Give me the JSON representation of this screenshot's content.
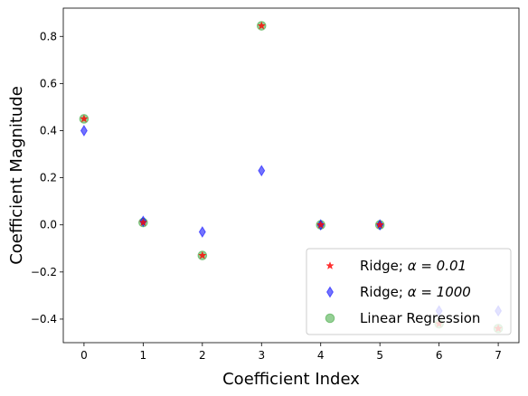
{
  "chart_data": {
    "type": "scatter",
    "title": "",
    "xlabel": "Coefficient Index",
    "ylabel": "Coefficient Magnitude",
    "xlim": [
      -0.35,
      7.35
    ],
    "ylim": [
      -0.5,
      0.92
    ],
    "xticks": [
      0,
      1,
      2,
      3,
      4,
      5,
      6,
      7
    ],
    "xtick_labels": [
      "0",
      "1",
      "2",
      "3",
      "4",
      "5",
      "6",
      "7"
    ],
    "yticks": [
      -0.4,
      -0.2,
      0.0,
      0.2,
      0.4,
      0.6,
      0.8
    ],
    "ytick_labels": [
      "−0.4",
      "−0.2",
      "0.0",
      "0.2",
      "0.4",
      "0.6",
      "0.8"
    ],
    "grid": false,
    "legend_position": "lower-right",
    "series": [
      {
        "name": "Linear Regression",
        "legend_label": "Linear Regression",
        "marker": "circle",
        "color": "#2ca02c",
        "alpha": 0.5,
        "x": [
          0,
          1,
          2,
          3,
          4,
          5,
          6,
          7
        ],
        "values": [
          0.45,
          0.01,
          -0.13,
          0.845,
          0.0,
          0.0,
          -0.42,
          -0.44
        ]
      },
      {
        "name": "Ridge; α = 1000",
        "legend_prefix": "Ridge; ",
        "legend_math": "α = 1000",
        "marker": "thin-diamond",
        "color": "#0000ff",
        "alpha": 0.55,
        "x": [
          0,
          1,
          2,
          3,
          4,
          5,
          6,
          7
        ],
        "values": [
          0.4,
          0.015,
          -0.03,
          0.23,
          0.0,
          0.0,
          -0.365,
          -0.365
        ]
      },
      {
        "name": "Ridge; α = 0.01",
        "legend_prefix": "Ridge; ",
        "legend_math": "α = 0.01",
        "marker": "star",
        "color": "#ff0000",
        "alpha": 0.8,
        "x": [
          0,
          1,
          2,
          3,
          4,
          5,
          6,
          7
        ],
        "values": [
          0.45,
          0.01,
          -0.13,
          0.845,
          0.0,
          0.0,
          -0.42,
          -0.44
        ]
      }
    ]
  }
}
